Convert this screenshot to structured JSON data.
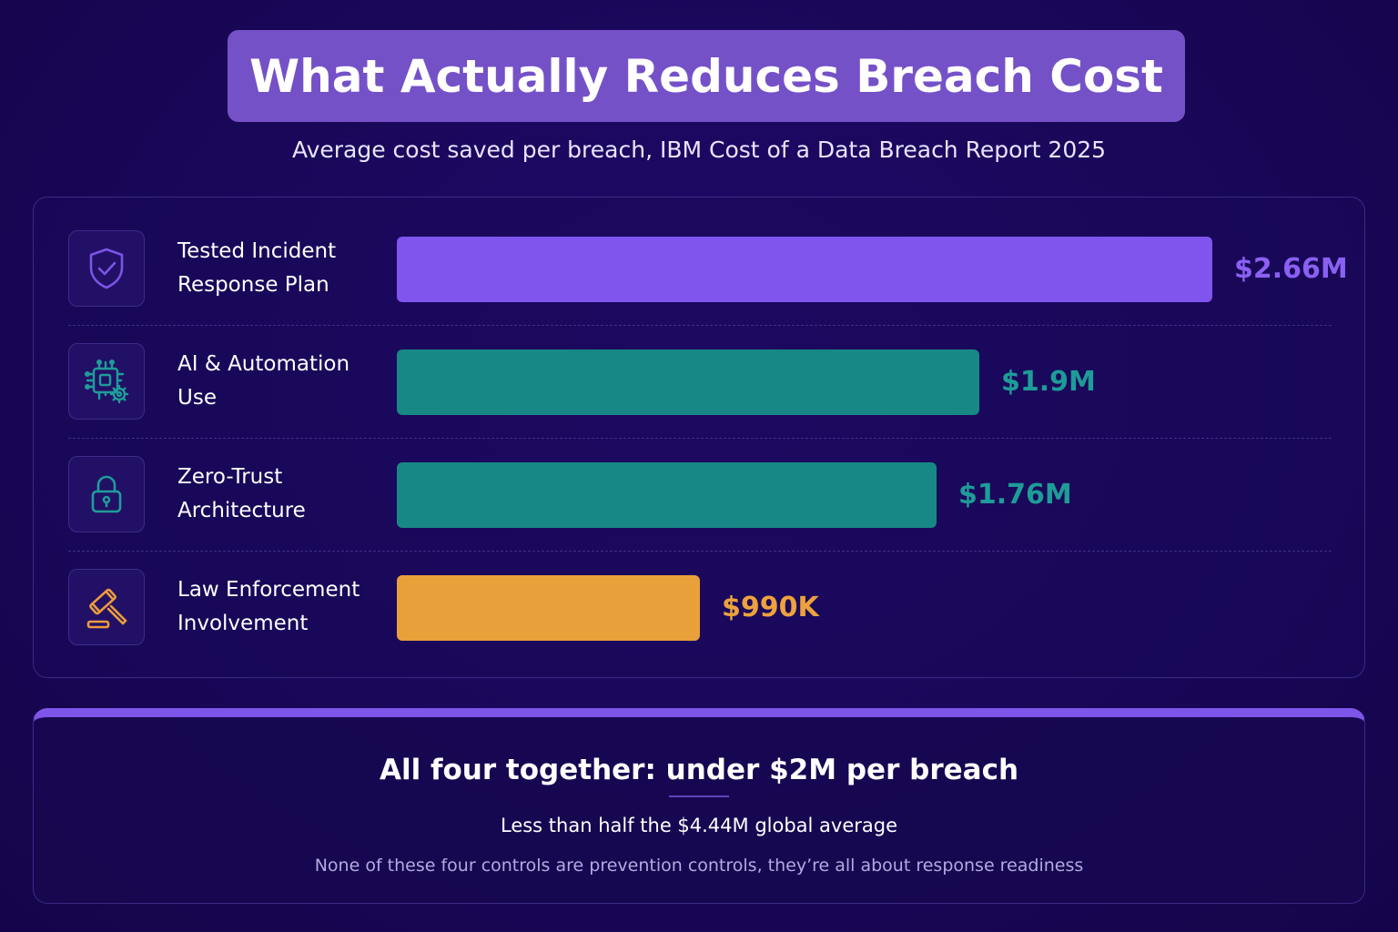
{
  "header": {
    "title": "What Actually Reduces Breach Cost",
    "subtitle": "Average cost saved per breach, IBM Cost of a Data Breach Report 2025"
  },
  "chart_data": {
    "type": "bar",
    "orientation": "horizontal",
    "categories": [
      "Tested Incident Response Plan",
      "AI & Automation Use",
      "Zero-Trust Architecture",
      "Law Enforcement Involvement"
    ],
    "values": [
      2.66,
      1.9,
      1.76,
      0.99
    ],
    "value_labels": [
      "$2.66M",
      "$1.9M",
      "$1.76M",
      "$990K"
    ],
    "unit": "$M",
    "xlim": [
      0,
      2.66
    ],
    "bar_colors": [
      "#7f55ee",
      "#178885",
      "#178885",
      "#e8a03a"
    ],
    "label_colors": [
      "#8a60f2",
      "#1e9c98",
      "#1e9c98",
      "#eda23c"
    ],
    "icons": [
      "shield-check-icon",
      "chip-gear-icon",
      "padlock-icon",
      "gavel-icon"
    ],
    "icon_colors": [
      "#7b55e6",
      "#1f9c99",
      "#1f9c99",
      "#eb9b3c"
    ],
    "title": "",
    "xlabel": "",
    "ylabel": "",
    "grid": false,
    "legend": "none"
  },
  "rows_text": [
    {
      "line1": "Tested Incident",
      "line2": "Response Plan"
    },
    {
      "line1": "AI & Automation",
      "line2": "Use"
    },
    {
      "line1": "Zero-Trust",
      "line2": "Architecture"
    },
    {
      "line1": "Law Enforcement",
      "line2": "Involvement"
    }
  ],
  "summary": {
    "headline": "All four together: under $2M per breach",
    "subline": "Less than half the $4.44M global average",
    "note": "None of these four controls are prevention controls, they’re all about response readiness"
  },
  "colors": {
    "background": "#190758",
    "title_banner": "#7551c8",
    "accent": "#7d55e8"
  }
}
